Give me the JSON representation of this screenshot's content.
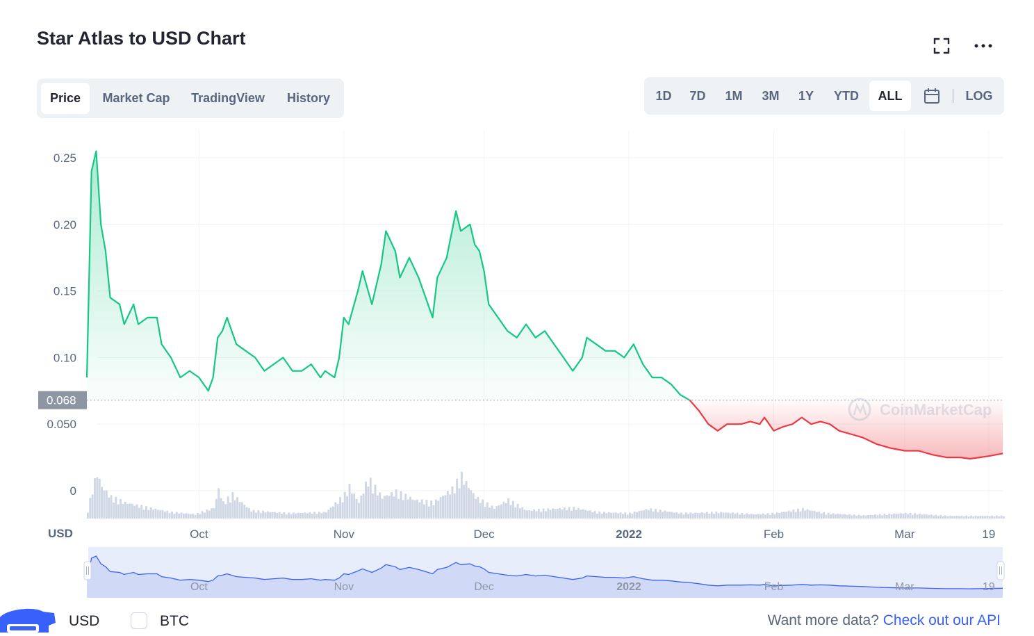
{
  "header": {
    "title": "Star Atlas to USD Chart",
    "fullscreen_icon": "expand-icon",
    "more_icon": "ellipsis-icon"
  },
  "tabs": [
    {
      "label": "Price",
      "active": true
    },
    {
      "label": "Market Cap",
      "active": false
    },
    {
      "label": "TradingView",
      "active": false
    },
    {
      "label": "History",
      "active": false
    }
  ],
  "ranges": [
    {
      "label": "1D",
      "active": false
    },
    {
      "label": "7D",
      "active": false
    },
    {
      "label": "1M",
      "active": false
    },
    {
      "label": "3M",
      "active": false
    },
    {
      "label": "1Y",
      "active": false
    },
    {
      "label": "YTD",
      "active": false
    },
    {
      "label": "ALL",
      "active": true
    }
  ],
  "calendar_icon": "calendar-icon",
  "log_label": "LOG",
  "footer": {
    "usd_label": "USD",
    "btc_label": "BTC",
    "api_text": "Want more data?",
    "api_link": "Check out our API"
  },
  "colors": {
    "up": "#16c784",
    "down": "#ea3943",
    "navigator": "#3861fb"
  },
  "chart_data": {
    "type": "line",
    "title": "Star Atlas to USD Chart",
    "ylabel": "USD",
    "ylim": [
      0,
      0.25
    ],
    "yticks": [
      {
        "value": 0.25,
        "label": "0.25"
      },
      {
        "value": 0.2,
        "label": "0.20"
      },
      {
        "value": 0.15,
        "label": "0.15"
      },
      {
        "value": 0.1,
        "label": "0.10"
      },
      {
        "value": 0.05,
        "label": "0.050"
      },
      {
        "value": 0,
        "label": "0"
      }
    ],
    "xlim": [
      "2021-09-07",
      "2022-03-22"
    ],
    "xticks": [
      {
        "date": "2021-10-01",
        "label": "Oct",
        "bold": false
      },
      {
        "date": "2021-11-01",
        "label": "Nov",
        "bold": false
      },
      {
        "date": "2021-12-01",
        "label": "Dec",
        "bold": false
      },
      {
        "date": "2022-01-01",
        "label": "2022",
        "bold": true
      },
      {
        "date": "2022-02-01",
        "label": "Feb",
        "bold": false
      },
      {
        "date": "2022-03-01",
        "label": "Mar",
        "bold": false
      },
      {
        "date": "2022-03-19",
        "label": "19",
        "bold": false
      }
    ],
    "reference_price": {
      "value": 0.068,
      "label": "0.068"
    },
    "watermark": "CoinMarketCap",
    "series": [
      {
        "points": [
          [
            "2021-09-07",
            0.085
          ],
          [
            "2021-09-08",
            0.24
          ],
          [
            "2021-09-09",
            0.255
          ],
          [
            "2021-09-10",
            0.2
          ],
          [
            "2021-09-11",
            0.18
          ],
          [
            "2021-09-12",
            0.145
          ],
          [
            "2021-09-14",
            0.14
          ],
          [
            "2021-09-15",
            0.125
          ],
          [
            "2021-09-17",
            0.14
          ],
          [
            "2021-09-18",
            0.125
          ],
          [
            "2021-09-20",
            0.13
          ],
          [
            "2021-09-22",
            0.13
          ],
          [
            "2021-09-23",
            0.11
          ],
          [
            "2021-09-25",
            0.1
          ],
          [
            "2021-09-27",
            0.085
          ],
          [
            "2021-09-29",
            0.09
          ],
          [
            "2021-10-01",
            0.085
          ],
          [
            "2021-10-03",
            0.075
          ],
          [
            "2021-10-04",
            0.085
          ],
          [
            "2021-10-05",
            0.115
          ],
          [
            "2021-10-06",
            0.12
          ],
          [
            "2021-10-07",
            0.13
          ],
          [
            "2021-10-09",
            0.11
          ],
          [
            "2021-10-11",
            0.105
          ],
          [
            "2021-10-13",
            0.1
          ],
          [
            "2021-10-15",
            0.09
          ],
          [
            "2021-10-17",
            0.095
          ],
          [
            "2021-10-19",
            0.1
          ],
          [
            "2021-10-21",
            0.09
          ],
          [
            "2021-10-23",
            0.09
          ],
          [
            "2021-10-25",
            0.095
          ],
          [
            "2021-10-27",
            0.085
          ],
          [
            "2021-10-28",
            0.09
          ],
          [
            "2021-10-30",
            0.085
          ],
          [
            "2021-10-31",
            0.1
          ],
          [
            "2021-11-01",
            0.13
          ],
          [
            "2021-11-02",
            0.125
          ],
          [
            "2021-11-04",
            0.15
          ],
          [
            "2021-11-05",
            0.165
          ],
          [
            "2021-11-07",
            0.14
          ],
          [
            "2021-11-09",
            0.17
          ],
          [
            "2021-11-10",
            0.195
          ],
          [
            "2021-11-12",
            0.18
          ],
          [
            "2021-11-13",
            0.16
          ],
          [
            "2021-11-15",
            0.175
          ],
          [
            "2021-11-17",
            0.16
          ],
          [
            "2021-11-18",
            0.15
          ],
          [
            "2021-11-20",
            0.13
          ],
          [
            "2021-11-21",
            0.16
          ],
          [
            "2021-11-23",
            0.175
          ],
          [
            "2021-11-25",
            0.21
          ],
          [
            "2021-11-26",
            0.195
          ],
          [
            "2021-11-28",
            0.2
          ],
          [
            "2021-11-29",
            0.185
          ],
          [
            "2021-11-30",
            0.18
          ],
          [
            "2021-12-01",
            0.165
          ],
          [
            "2021-12-02",
            0.14
          ],
          [
            "2021-12-04",
            0.13
          ],
          [
            "2021-12-06",
            0.12
          ],
          [
            "2021-12-08",
            0.115
          ],
          [
            "2021-12-10",
            0.125
          ],
          [
            "2021-12-12",
            0.115
          ],
          [
            "2021-12-14",
            0.12
          ],
          [
            "2021-12-16",
            0.11
          ],
          [
            "2021-12-18",
            0.1
          ],
          [
            "2021-12-20",
            0.09
          ],
          [
            "2021-12-22",
            0.1
          ],
          [
            "2021-12-23",
            0.115
          ],
          [
            "2021-12-25",
            0.11
          ],
          [
            "2021-12-27",
            0.105
          ],
          [
            "2021-12-29",
            0.105
          ],
          [
            "2021-12-31",
            0.1
          ],
          [
            "2022-01-02",
            0.11
          ],
          [
            "2022-01-04",
            0.095
          ],
          [
            "2022-01-06",
            0.085
          ],
          [
            "2022-01-08",
            0.085
          ],
          [
            "2022-01-10",
            0.08
          ],
          [
            "2022-01-12",
            0.072
          ],
          [
            "2022-01-14",
            0.068
          ],
          [
            "2022-01-16",
            0.06
          ],
          [
            "2022-01-18",
            0.05
          ],
          [
            "2022-01-20",
            0.045
          ],
          [
            "2022-01-22",
            0.05
          ],
          [
            "2022-01-25",
            0.05
          ],
          [
            "2022-01-27",
            0.052
          ],
          [
            "2022-01-29",
            0.05
          ],
          [
            "2022-01-30",
            0.055
          ],
          [
            "2022-02-01",
            0.045
          ],
          [
            "2022-02-03",
            0.048
          ],
          [
            "2022-02-05",
            0.05
          ],
          [
            "2022-02-07",
            0.055
          ],
          [
            "2022-02-09",
            0.05
          ],
          [
            "2022-02-11",
            0.052
          ],
          [
            "2022-02-13",
            0.05
          ],
          [
            "2022-02-15",
            0.045
          ],
          [
            "2022-02-18",
            0.042
          ],
          [
            "2022-02-20",
            0.04
          ],
          [
            "2022-02-23",
            0.035
          ],
          [
            "2022-02-26",
            0.032
          ],
          [
            "2022-03-01",
            0.03
          ],
          [
            "2022-03-04",
            0.03
          ],
          [
            "2022-03-07",
            0.027
          ],
          [
            "2022-03-10",
            0.025
          ],
          [
            "2022-03-13",
            0.025
          ],
          [
            "2022-03-15",
            0.024
          ],
          [
            "2022-03-17",
            0.025
          ],
          [
            "2022-03-19",
            0.026
          ],
          [
            "2022-03-22",
            0.028
          ]
        ]
      }
    ],
    "volume": [
      [
        "2021-09-07",
        0.15
      ],
      [
        "2021-09-08",
        0.55
      ],
      [
        "2021-09-09",
        0.85
      ],
      [
        "2021-09-10",
        0.6
      ],
      [
        "2021-09-12",
        0.4
      ],
      [
        "2021-09-15",
        0.3
      ],
      [
        "2021-09-20",
        0.2
      ],
      [
        "2021-09-25",
        0.12
      ],
      [
        "2021-09-30",
        0.08
      ],
      [
        "2021-10-04",
        0.2
      ],
      [
        "2021-10-05",
        0.55
      ],
      [
        "2021-10-06",
        0.3
      ],
      [
        "2021-10-08",
        0.45
      ],
      [
        "2021-10-12",
        0.15
      ],
      [
        "2021-10-20",
        0.1
      ],
      [
        "2021-10-28",
        0.12
      ],
      [
        "2021-11-01",
        0.45
      ],
      [
        "2021-11-02",
        0.6
      ],
      [
        "2021-11-04",
        0.3
      ],
      [
        "2021-11-06",
        0.75
      ],
      [
        "2021-11-09",
        0.4
      ],
      [
        "2021-11-12",
        0.5
      ],
      [
        "2021-11-16",
        0.35
      ],
      [
        "2021-11-20",
        0.3
      ],
      [
        "2021-11-24",
        0.55
      ],
      [
        "2021-11-26",
        0.8
      ],
      [
        "2021-11-29",
        0.4
      ],
      [
        "2021-12-03",
        0.2
      ],
      [
        "2021-12-06",
        0.35
      ],
      [
        "2021-12-10",
        0.15
      ],
      [
        "2021-12-15",
        0.18
      ],
      [
        "2021-12-20",
        0.2
      ],
      [
        "2021-12-25",
        0.12
      ],
      [
        "2022-01-01",
        0.1
      ],
      [
        "2022-01-05",
        0.18
      ],
      [
        "2022-01-12",
        0.1
      ],
      [
        "2022-01-20",
        0.12
      ],
      [
        "2022-01-28",
        0.08
      ],
      [
        "2022-02-01",
        0.1
      ],
      [
        "2022-02-07",
        0.18
      ],
      [
        "2022-02-12",
        0.1
      ],
      [
        "2022-02-20",
        0.06
      ],
      [
        "2022-03-01",
        0.1
      ],
      [
        "2022-03-10",
        0.05
      ],
      [
        "2022-03-22",
        0.05
      ]
    ],
    "navigator": {
      "xtick_labels": [
        "Oct",
        "Nov",
        "Dec",
        "2022",
        "Feb",
        "Mar",
        "19"
      ]
    }
  }
}
